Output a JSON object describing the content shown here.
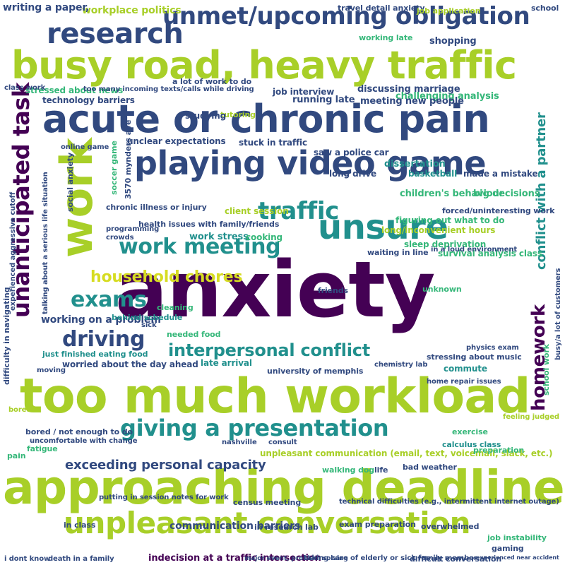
{
  "palette": {
    "lime": "#a8cf28",
    "teal": "#21908d",
    "navy": "#3b528b",
    "purple": "#440154",
    "green": "#35b779"
  },
  "words": [
    {
      "text": "anxiety",
      "color": "#440154"
    },
    {
      "text": "approaching deadline",
      "color": "#a8cf28"
    },
    {
      "text": "too much workload",
      "color": "#a8cf28"
    },
    {
      "text": "busy road, heavy traffic",
      "color": "#a8cf28"
    },
    {
      "text": "acute or chronic pain",
      "color": "#31497f"
    },
    {
      "text": "playing video game",
      "color": "#31497f"
    },
    {
      "text": "work",
      "color": "#a8cf28"
    },
    {
      "text": "unmet/upcoming obligation",
      "color": "#31497f"
    },
    {
      "text": "research",
      "color": "#31497f"
    },
    {
      "text": "unsure",
      "color": "#21908d"
    },
    {
      "text": "unpleasant conversation",
      "color": "#a8cf28"
    },
    {
      "text": "giving a presentation",
      "color": "#21908d"
    },
    {
      "text": "unanticipated task",
      "color": "#440154"
    },
    {
      "text": "work meeting",
      "color": "#21908d"
    },
    {
      "text": "traffic",
      "color": "#21908d"
    },
    {
      "text": "driving",
      "color": "#31497f"
    },
    {
      "text": "household chores",
      "color": "#d6dc22"
    },
    {
      "text": "exams",
      "color": "#21908d"
    },
    {
      "text": "interpersonal conflict",
      "color": "#21908d"
    },
    {
      "text": "homework",
      "color": "#440154"
    },
    {
      "text": "exceeding personal capacity",
      "color": "#31497f"
    },
    {
      "text": "conflict with a partner",
      "color": "#21908d"
    },
    {
      "text": "working on a problem",
      "color": "#31497f"
    },
    {
      "text": "communication barriers",
      "color": "#31497f"
    },
    {
      "text": "technical difficulties (e.g., intermittent internet outage)",
      "color": "#31497f"
    },
    {
      "text": "unpleasant communication (email, text, voicemail, slack, etc.)",
      "color": "#a8cf28"
    },
    {
      "text": "indecision at a traffic intersection",
      "color": "#440154"
    },
    {
      "text": "workplace politics",
      "color": "#a8cf28"
    },
    {
      "text": "writing a paper,",
      "color": "#31497f"
    },
    {
      "text": "stressed about news",
      "color": "#35b779"
    },
    {
      "text": "job interview",
      "color": "#31497f"
    },
    {
      "text": "discussing marriage",
      "color": "#31497f"
    },
    {
      "text": "shopping",
      "color": "#31497f"
    },
    {
      "text": "running late",
      "color": "#31497f"
    },
    {
      "text": "challenging analysis",
      "color": "#35b779"
    },
    {
      "text": "meeting new people",
      "color": "#31497f"
    },
    {
      "text": "dissertation",
      "color": "#21908d"
    },
    {
      "text": "basketball",
      "color": "#21908d"
    },
    {
      "text": "made a mistake",
      "color": "#31497f"
    },
    {
      "text": "children's behaviour",
      "color": "#35b779"
    },
    {
      "text": "big decisions",
      "color": "#35b779"
    },
    {
      "text": "forced/uninteresting work",
      "color": "#31497f"
    },
    {
      "text": "long/inconvenient hours",
      "color": "#a8cf28"
    },
    {
      "text": "figuring out what to do",
      "color": "#35b779"
    },
    {
      "text": "survival analysis class",
      "color": "#35b779"
    },
    {
      "text": "sleep deprivation",
      "color": "#35b779"
    },
    {
      "text": "waiting in line",
      "color": "#31497f"
    },
    {
      "text": "client session",
      "color": "#a8cf28"
    },
    {
      "text": "chronic illness or injury",
      "color": "#31497f"
    },
    {
      "text": "health issues with family/friends",
      "color": "#31497f"
    },
    {
      "text": "work stress",
      "color": "#21908d"
    },
    {
      "text": "cooking",
      "color": "#35b779"
    },
    {
      "text": "stuck in traffic",
      "color": "#31497f"
    },
    {
      "text": "saw a police car",
      "color": "#31497f"
    },
    {
      "text": "long drive",
      "color": "#31497f"
    },
    {
      "text": "unclear expectations",
      "color": "#31497f"
    },
    {
      "text": "tutoring",
      "color": "#a8cf28"
    },
    {
      "text": "studying",
      "color": "#31497f"
    },
    {
      "text": "technology barriers",
      "color": "#31497f"
    },
    {
      "text": "too many incoming texts/calls while driving",
      "color": "#31497f"
    },
    {
      "text": "a lot of work to do",
      "color": "#31497f"
    },
    {
      "text": "travel detail anxiety",
      "color": "#31497f"
    },
    {
      "text": "job application",
      "color": "#a8cf28"
    },
    {
      "text": "working late",
      "color": "#35b779"
    },
    {
      "text": "soccer game",
      "color": "#35b779"
    },
    {
      "text": "3570 mynders ave",
      "color": "#31497f"
    },
    {
      "text": "social anxiety",
      "color": "#31497f"
    },
    {
      "text": "worried about the day ahead",
      "color": "#31497f"
    },
    {
      "text": "late arrival",
      "color": "#21908d"
    },
    {
      "text": "just finished eating food",
      "color": "#21908d"
    },
    {
      "text": "behind schedule",
      "color": "#21908d"
    },
    {
      "text": "cleaning",
      "color": "#35b779"
    },
    {
      "text": "needed food",
      "color": "#35b779"
    },
    {
      "text": "university of memphis",
      "color": "#31497f"
    },
    {
      "text": "stressing about music",
      "color": "#31497f"
    },
    {
      "text": "commute",
      "color": "#21908d"
    },
    {
      "text": "unknown",
      "color": "#35b779"
    },
    {
      "text": "friends",
      "color": "#31497f"
    },
    {
      "text": "bored / not enough to do",
      "color": "#31497f"
    },
    {
      "text": "uncomfortable with change",
      "color": "#31497f"
    },
    {
      "text": "fatigue",
      "color": "#35b779"
    },
    {
      "text": "pain",
      "color": "#35b779"
    },
    {
      "text": "exercise",
      "color": "#35b779"
    },
    {
      "text": "calculus class",
      "color": "#21908d"
    },
    {
      "text": "bad weather",
      "color": "#31497f"
    },
    {
      "text": "walking dog",
      "color": "#35b779"
    },
    {
      "text": "life",
      "color": "#31497f"
    },
    {
      "text": "census meeting",
      "color": "#31497f"
    },
    {
      "text": "exam preparation",
      "color": "#31497f"
    },
    {
      "text": "overwhelmed",
      "color": "#31497f"
    },
    {
      "text": "job instability",
      "color": "#35b779"
    },
    {
      "text": "gaming",
      "color": "#31497f"
    },
    {
      "text": "in research lab",
      "color": "#31497f"
    },
    {
      "text": "in class",
      "color": "#31497f"
    },
    {
      "text": "difficulty in navigating",
      "color": "#31497f"
    },
    {
      "text": "experienced aggressive cutoff",
      "color": "#31497f"
    },
    {
      "text": "talking about a serious life situation",
      "color": "#31497f"
    },
    {
      "text": "busy/a lot of customers",
      "color": "#31497f"
    },
    {
      "text": "school work",
      "color": "#35b779"
    },
    {
      "text": "feeling judged",
      "color": "#a8cf28"
    },
    {
      "text": "programming",
      "color": "#31497f"
    },
    {
      "text": "crowds",
      "color": "#31497f"
    },
    {
      "text": "home repair issues",
      "color": "#31497f"
    },
    {
      "text": "in a loud environment",
      "color": "#31497f"
    },
    {
      "text": "putting in session notes for work",
      "color": "#31497f"
    },
    {
      "text": "taking care of elderly or sick family member",
      "color": "#31497f"
    },
    {
      "text": "difficult conversation",
      "color": "#31497f"
    },
    {
      "text": "experienced near accident",
      "color": "#31497f"
    },
    {
      "text": "i dont know",
      "color": "#31497f"
    },
    {
      "text": "death in a family",
      "color": "#31497f"
    },
    {
      "text": "major event, problem solving",
      "color": "#31497f"
    },
    {
      "text": "school",
      "color": "#31497f"
    },
    {
      "text": "class work",
      "color": "#31497f"
    },
    {
      "text": "preparation",
      "color": "#35b779"
    },
    {
      "text": "online game",
      "color": "#31497f"
    },
    {
      "text": "chemistry lab",
      "color": "#31497f"
    },
    {
      "text": "physics exam",
      "color": "#31497f"
    },
    {
      "text": "nashville",
      "color": "#31497f"
    },
    {
      "text": "consult",
      "color": "#31497f"
    },
    {
      "text": "moving",
      "color": "#31497f"
    },
    {
      "text": "bored",
      "color": "#a8cf28"
    },
    {
      "text": "sick",
      "color": "#31497f"
    }
  ]
}
